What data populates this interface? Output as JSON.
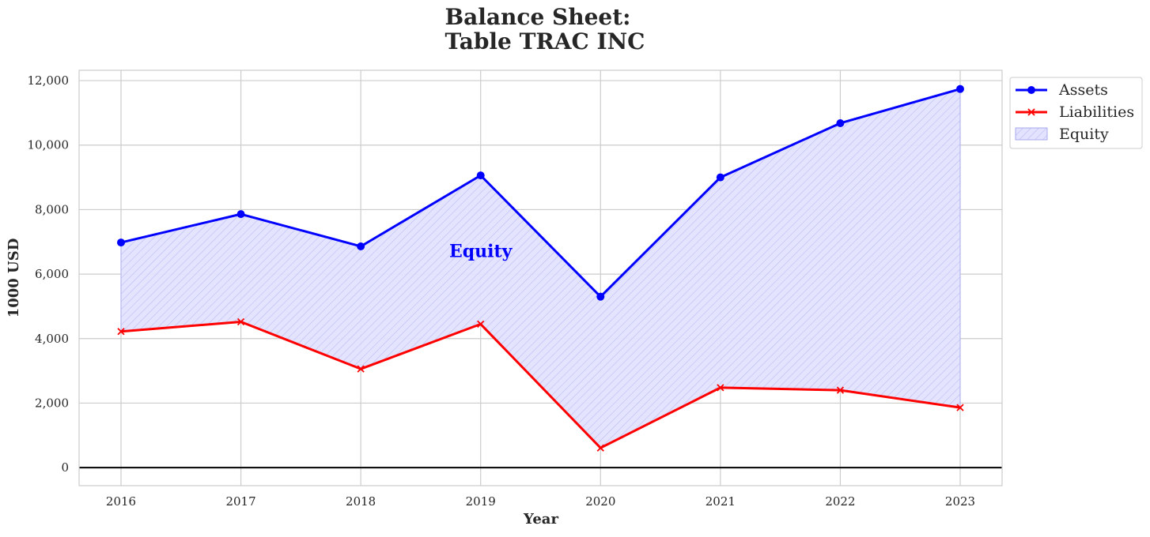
{
  "chart_data": {
    "type": "line",
    "title_line1": "Balance Sheet:",
    "title_line2": "Table TRAC INC",
    "xlabel": "Year",
    "ylabel": "1000 USD",
    "x": [
      "2016",
      "2017",
      "2018",
      "2019",
      "2020",
      "2021",
      "2022",
      "2023"
    ],
    "series": [
      {
        "name": "Assets",
        "color": "#0000ff",
        "marker": "circle",
        "values": [
          6980,
          7860,
          6860,
          9060,
          5300,
          9000,
          10680,
          11740
        ]
      },
      {
        "name": "Liabilities",
        "color": "#ff0000",
        "marker": "x",
        "values": [
          4220,
          4520,
          3060,
          4450,
          610,
          2480,
          2400,
          1860
        ]
      }
    ],
    "fill": {
      "name": "Equity",
      "between": [
        "Assets",
        "Liabilities"
      ],
      "color": "#0000ff",
      "hatch": "diagonal"
    },
    "annotation": {
      "text": "Equity",
      "x": "2019",
      "y": 6600,
      "color": "#0000ff"
    },
    "yticks": [
      0,
      2000,
      4000,
      6000,
      8000,
      10000,
      12000
    ],
    "ytick_labels": [
      "0",
      "2,000",
      "4,000",
      "6,000",
      "8,000",
      "10,000",
      "12,000"
    ],
    "ylim": [
      -560,
      12320
    ],
    "zero_line": true,
    "grid": true,
    "legend_position": "outside-top-right"
  }
}
